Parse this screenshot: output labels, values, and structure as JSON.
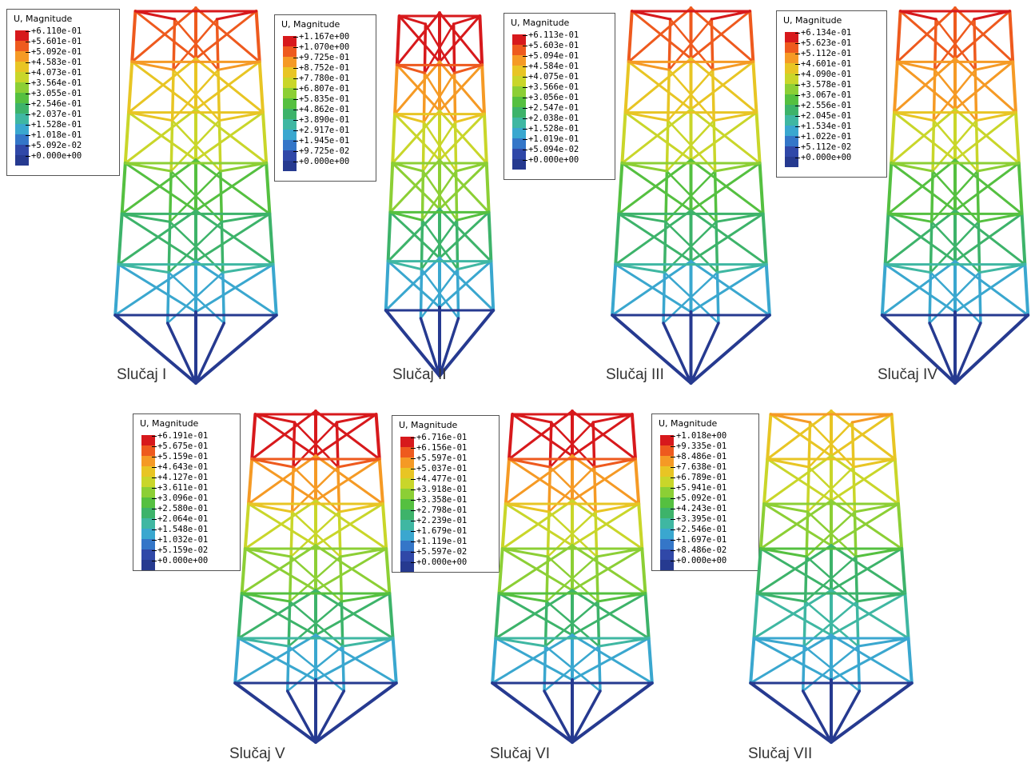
{
  "legend_title": "U, Magnitude",
  "colorscale": [
    "#d7191c",
    "#ee5a1e",
    "#f59a25",
    "#e8c524",
    "#c9d62a",
    "#8ccf35",
    "#55c040",
    "#3db36a",
    "#3fb7a2",
    "#3aa7cf",
    "#3476c8",
    "#3048a8",
    "#263a90"
  ],
  "panels": [
    {
      "caption": "Slučaj I",
      "legend": [
        "+6.110e-01",
        "+5.601e-01",
        "+5.092e-01",
        "+4.583e-01",
        "+4.073e-01",
        "+3.564e-01",
        "+3.055e-01",
        "+2.546e-01",
        "+2.037e-01",
        "+1.528e-01",
        "+1.018e-01",
        "+5.092e-02",
        "+0.000e+00"
      ]
    },
    {
      "caption": "Slučaj II",
      "legend": [
        "+1.167e+00",
        "+1.070e+00",
        "+9.725e-01",
        "+8.752e-01",
        "+7.780e-01",
        "+6.807e-01",
        "+5.835e-01",
        "+4.862e-01",
        "+3.890e-01",
        "+2.917e-01",
        "+1.945e-01",
        "+9.725e-02",
        "+0.000e+00"
      ]
    },
    {
      "caption": "Slučaj III",
      "legend": [
        "+6.113e-01",
        "+5.603e-01",
        "+5.094e-01",
        "+4.584e-01",
        "+4.075e-01",
        "+3.566e-01",
        "+3.056e-01",
        "+2.547e-01",
        "+2.038e-01",
        "+1.528e-01",
        "+1.019e-01",
        "+5.094e-02",
        "+0.000e+00"
      ]
    },
    {
      "caption": "Slučaj IV",
      "legend": [
        "+6.134e-01",
        "+5.623e-01",
        "+5.112e-01",
        "+4.601e-01",
        "+4.090e-01",
        "+3.578e-01",
        "+3.067e-01",
        "+2.556e-01",
        "+2.045e-01",
        "+1.534e-01",
        "+1.022e-01",
        "+5.112e-02",
        "+0.000e+00"
      ]
    },
    {
      "caption": "Slučaj V",
      "legend": [
        "+6.191e-01",
        "+5.675e-01",
        "+5.159e-01",
        "+4.643e-01",
        "+4.127e-01",
        "+3.611e-01",
        "+3.096e-01",
        "+2.580e-01",
        "+2.064e-01",
        "+1.548e-01",
        "+1.032e-01",
        "+5.159e-02",
        "+0.000e+00"
      ]
    },
    {
      "caption": "Slučaj VI",
      "legend": [
        "+6.716e-01",
        "+6.156e-01",
        "+5.597e-01",
        "+5.037e-01",
        "+4.477e-01",
        "+3.918e-01",
        "+3.358e-01",
        "+2.798e-01",
        "+2.239e-01",
        "+1.679e-01",
        "+1.119e-01",
        "+5.597e-02",
        "+0.000e+00"
      ]
    },
    {
      "caption": "Slučaj VII",
      "legend": [
        "+1.018e+00",
        "+9.335e-01",
        "+8.486e-01",
        "+7.638e-01",
        "+6.789e-01",
        "+5.941e-01",
        "+5.092e-01",
        "+4.243e-01",
        "+3.395e-01",
        "+2.546e-01",
        "+1.697e-01",
        "+8.486e-02",
        "+0.000e+00"
      ]
    }
  ]
}
